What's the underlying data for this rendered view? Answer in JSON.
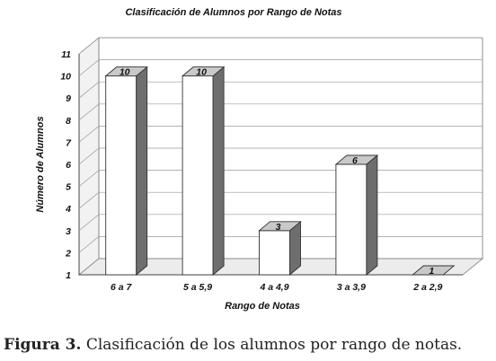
{
  "chart_data": {
    "type": "bar",
    "title": "Clasificación de Alumnos por Rango de Notas",
    "xlabel": "Rango de Notas",
    "ylabel": "Número de Alumnos",
    "categories": [
      "6 a 7",
      "5 a 5,9",
      "4 a 4,9",
      "3 a 3,9",
      "2 a 2,9"
    ],
    "values": [
      10,
      10,
      3,
      6,
      1
    ],
    "data_labels": [
      "10",
      "10",
      "3",
      "6",
      "1"
    ],
    "y_ticks": [
      "1",
      "2",
      "3",
      "4",
      "5",
      "6",
      "7",
      "8",
      "9",
      "10",
      "11"
    ],
    "ylim": [
      1,
      11
    ],
    "grid": true,
    "legend": "none",
    "style": "3d"
  },
  "caption": {
    "label": "Figura 3.",
    "text": " Clasificación de los alumnos por rango de notas."
  }
}
